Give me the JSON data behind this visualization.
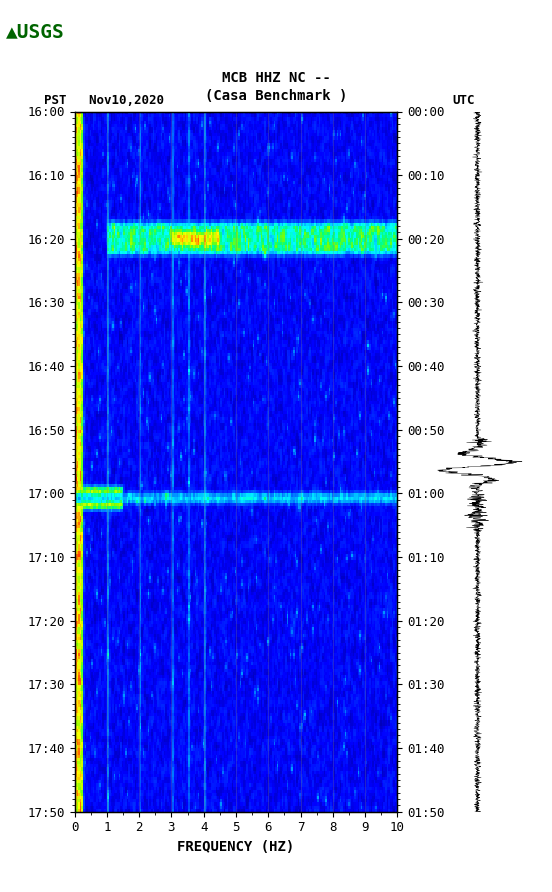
{
  "title_line1": "MCB HHZ NC --",
  "title_line2": "(Casa Benchmark )",
  "left_label": "PST   Nov10,2020",
  "right_label": "UTC",
  "freq_min": 0,
  "freq_max": 10,
  "time_start_pst": "16:00",
  "time_end_pst": "17:50",
  "time_start_utc": "00:00",
  "time_end_utc": "01:50",
  "xlabel": "FREQUENCY (HZ)",
  "spectrogram_bg_color": "#000080",
  "left_tick_labels_pst": [
    "16:00",
    "16:10",
    "16:20",
    "16:30",
    "16:40",
    "16:50",
    "17:00",
    "17:10",
    "17:20",
    "17:30",
    "17:40",
    "17:50"
  ],
  "right_tick_labels_utc": [
    "00:00",
    "00:10",
    "00:20",
    "00:30",
    "00:40",
    "00:50",
    "01:00",
    "01:10",
    "01:20",
    "01:30",
    "01:40",
    "01:50"
  ],
  "freq_ticks": [
    0,
    1,
    2,
    3,
    4,
    5,
    6,
    7,
    8,
    9,
    10
  ],
  "grid_color": "#808080",
  "grid_alpha": 0.4,
  "fig_width": 5.52,
  "fig_height": 8.92,
  "dpi": 100
}
